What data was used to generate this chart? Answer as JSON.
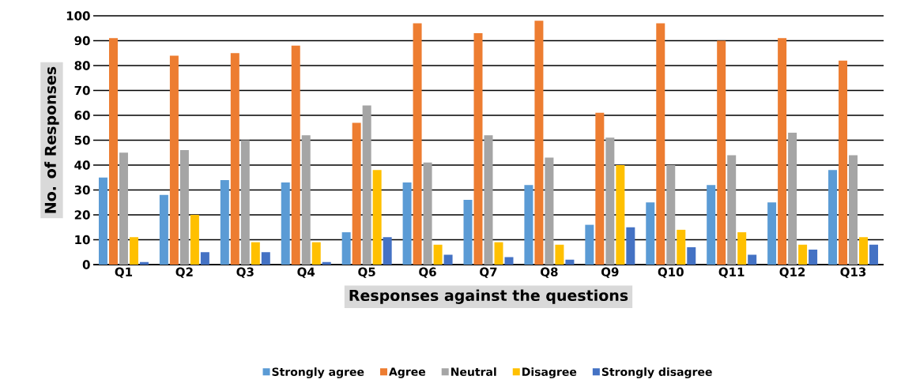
{
  "chart_data": {
    "type": "bar",
    "xlabel": "Responses against the questions",
    "ylabel": "No. of Responses",
    "categories": [
      "Q1",
      "Q2",
      "Q3",
      "Q4",
      "Q5",
      "Q6",
      "Q7",
      "Q8",
      "Q9",
      "Q10",
      "Q11",
      "Q12",
      "Q13"
    ],
    "series": [
      {
        "name": "Strongly agree",
        "color": "#5b9bd5",
        "values": [
          35,
          28,
          34,
          33,
          13,
          33,
          26,
          32,
          16,
          25,
          32,
          25,
          38
        ]
      },
      {
        "name": "Agree",
        "color": "#ed7d31",
        "values": [
          91,
          84,
          85,
          88,
          57,
          97,
          93,
          98,
          61,
          97,
          90,
          91,
          82
        ]
      },
      {
        "name": "Neutral",
        "color": "#a5a5a5",
        "values": [
          45,
          46,
          50,
          52,
          64,
          41,
          52,
          43,
          51,
          40,
          44,
          53,
          44
        ]
      },
      {
        "name": "Disagree",
        "color": "#ffc000",
        "values": [
          11,
          20,
          9,
          9,
          38,
          8,
          9,
          8,
          40,
          14,
          13,
          8,
          11
        ]
      },
      {
        "name": "Strongly disagree",
        "color": "#4472c4",
        "values": [
          1,
          5,
          5,
          1,
          11,
          4,
          3,
          2,
          15,
          7,
          4,
          6,
          8
        ]
      }
    ],
    "ylim": [
      0,
      100
    ],
    "yticks": [
      0,
      10,
      20,
      30,
      40,
      50,
      60,
      70,
      80,
      90,
      100
    ],
    "grid": "y",
    "legend": "bottom"
  }
}
